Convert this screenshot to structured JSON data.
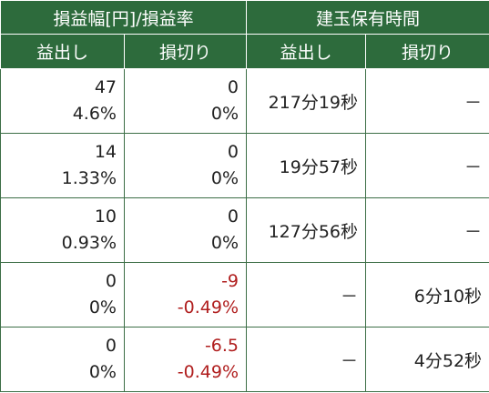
{
  "header": {
    "group_pnl": "損益幅[円]/損益率",
    "group_hold": "建玉保有時間",
    "sub_profit": "益出し",
    "sub_loss": "損切り",
    "sub_hold_profit": "益出し",
    "sub_hold_loss": "損切り"
  },
  "rows": [
    {
      "profit_amt": "47",
      "profit_rate": "4.6%",
      "loss_amt": "0",
      "loss_rate": "0%",
      "hold_profit": "217分19秒",
      "hold_loss": "－",
      "loss_negative": false
    },
    {
      "profit_amt": "14",
      "profit_rate": "1.33%",
      "loss_amt": "0",
      "loss_rate": "0%",
      "hold_profit": "19分57秒",
      "hold_loss": "－",
      "loss_negative": false
    },
    {
      "profit_amt": "10",
      "profit_rate": "0.93%",
      "loss_amt": "0",
      "loss_rate": "0%",
      "hold_profit": "127分56秒",
      "hold_loss": "－",
      "loss_negative": false
    },
    {
      "profit_amt": "0",
      "profit_rate": "0%",
      "loss_amt": "-9",
      "loss_rate": "-0.49%",
      "hold_profit": "－",
      "hold_loss": "6分10秒",
      "loss_negative": true
    },
    {
      "profit_amt": "0",
      "profit_rate": "0%",
      "loss_amt": "-6.5",
      "loss_rate": "-0.49%",
      "hold_profit": "－",
      "hold_loss": "4分52秒",
      "loss_negative": true
    }
  ],
  "colors": {
    "header_bg": "#2d6b3c",
    "negative": "#b01e1e"
  }
}
